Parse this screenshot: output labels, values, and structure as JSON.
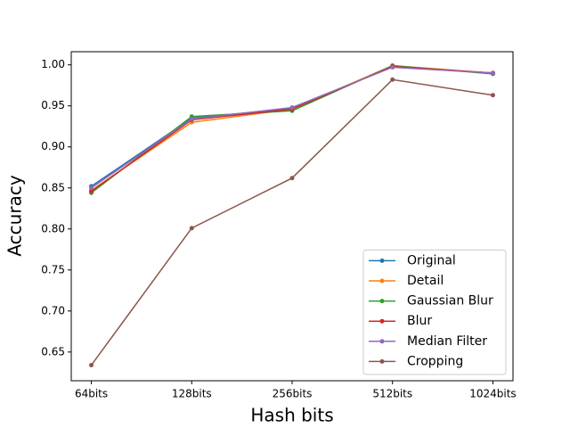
{
  "chart_data": {
    "type": "line",
    "x_label": "Hash bits",
    "y_label": "Accuracy",
    "categories": [
      "64bits",
      "128bits",
      "256bits",
      "512bits",
      "1024bits"
    ],
    "series": [
      {
        "name": "Original",
        "color": "#1f77b4",
        "values": [
          0.852,
          0.935,
          0.947,
          0.998,
          0.99
        ]
      },
      {
        "name": "Detail",
        "color": "#ff7f0e",
        "values": [
          0.847,
          0.93,
          0.946,
          0.999,
          0.99
        ]
      },
      {
        "name": "Gaussian Blur",
        "color": "#2ca02c",
        "values": [
          0.844,
          0.937,
          0.944,
          0.999,
          0.989
        ]
      },
      {
        "name": "Blur",
        "color": "#d62728",
        "values": [
          0.846,
          0.933,
          0.946,
          0.998,
          0.99
        ]
      },
      {
        "name": "Median Filter",
        "color": "#9467bd",
        "values": [
          0.85,
          0.934,
          0.948,
          0.997,
          0.99
        ]
      },
      {
        "name": "Cropping",
        "color": "#8c564b",
        "values": [
          0.634,
          0.801,
          0.862,
          0.982,
          0.963
        ]
      }
    ],
    "ylim": [
      0.615,
      1.016
    ],
    "yticks": [
      0.65,
      {
        "value": 0.7,
        "label": "0.70"
      },
      0.75,
      {
        "value": 0.8,
        "label": "0.80"
      },
      0.85,
      {
        "value": 0.9,
        "label": "0.90"
      },
      0.95,
      {
        "value": 1.0,
        "label": "1.00"
      }
    ],
    "legend": "lower right",
    "grid": false
  }
}
